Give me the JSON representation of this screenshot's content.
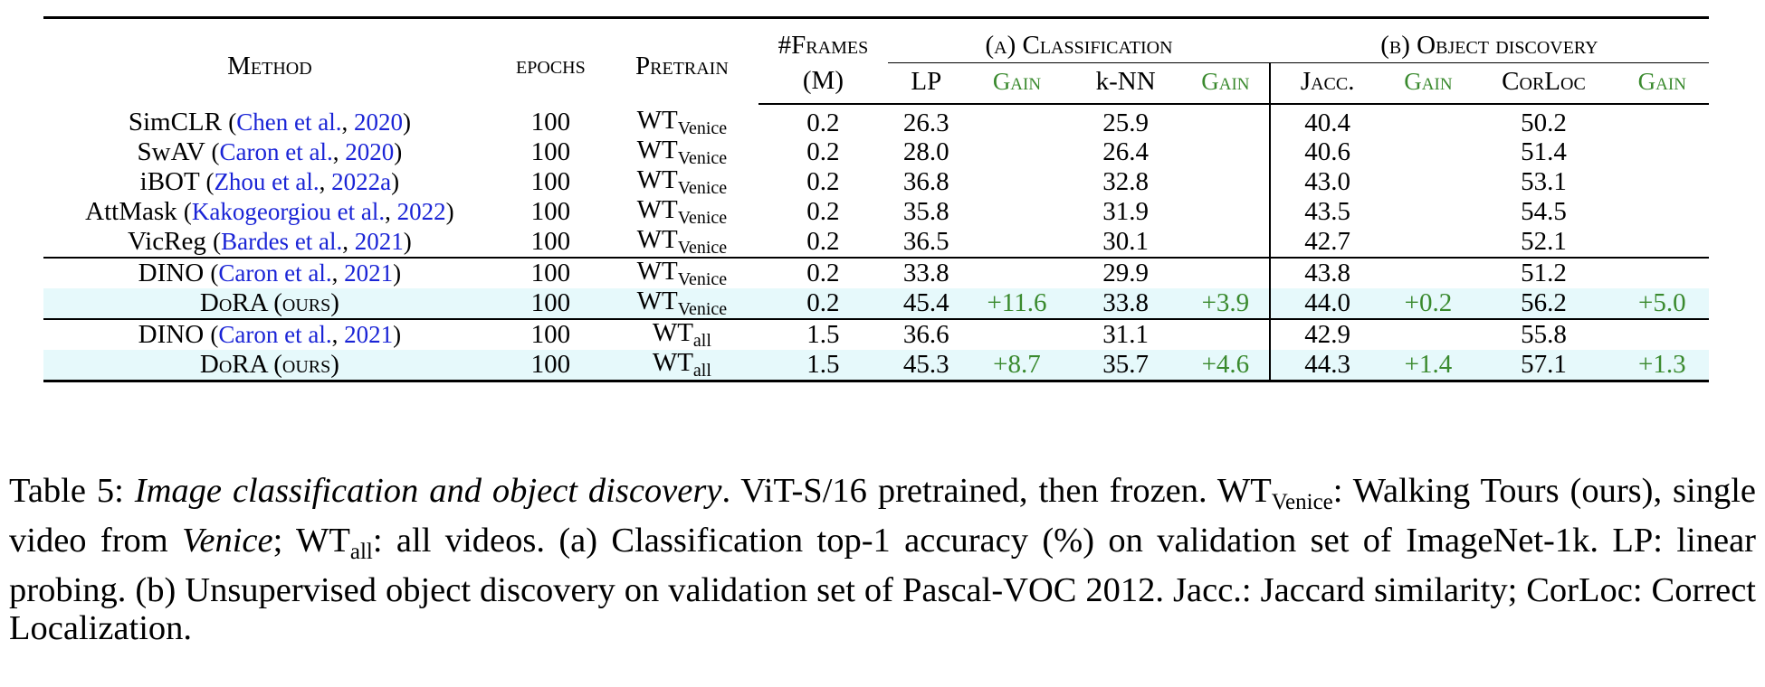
{
  "table": {
    "headers": {
      "method": "Method",
      "epochs": "epochs",
      "pretrain": "Pretrain",
      "frames_line1": "#Frames",
      "frames_line2": "(M)",
      "group_a": "(a) Classification",
      "group_b": "(b) Object discovery",
      "lp": "LP",
      "gain": "Gain",
      "knn": "k-NN",
      "jacc": "Jacc.",
      "corloc": "CorLoc"
    },
    "rows": [
      {
        "method": "SimCLR",
        "open": "(",
        "cite_author": "Chen et al.",
        "sep": ", ",
        "cite_year": "2020",
        "close": ")",
        "epochs": "100",
        "pretrain": "WT",
        "pretrain_sub": "Venice",
        "frames": "0.2",
        "lp": "26.3",
        "lp_gain": "",
        "knn": "25.9",
        "knn_gain": "",
        "jacc": "40.4",
        "jacc_gain": "",
        "corloc": "50.2",
        "corloc_gain": ""
      },
      {
        "method": "SwAV",
        "open": "(",
        "cite_author": "Caron et al.",
        "sep": ", ",
        "cite_year": "2020",
        "close": ")",
        "epochs": "100",
        "pretrain": "WT",
        "pretrain_sub": "Venice",
        "frames": "0.2",
        "lp": "28.0",
        "lp_gain": "",
        "knn": "26.4",
        "knn_gain": "",
        "jacc": "40.6",
        "jacc_gain": "",
        "corloc": "51.4",
        "corloc_gain": ""
      },
      {
        "method": "iBOT",
        "open": "(",
        "cite_author": "Zhou et al.",
        "sep": ", ",
        "cite_year": "2022a",
        "close": ")",
        "epochs": "100",
        "pretrain": "WT",
        "pretrain_sub": "Venice",
        "frames": "0.2",
        "lp": "36.8",
        "lp_gain": "",
        "knn": "32.8",
        "knn_gain": "",
        "jacc": "43.0",
        "jacc_gain": "",
        "corloc": "53.1",
        "corloc_gain": ""
      },
      {
        "method": "AttMask",
        "open": "(",
        "cite_author": "Kakogeorgiou et al.",
        "sep": ", ",
        "cite_year": "2022",
        "close": ")",
        "epochs": "100",
        "pretrain": "WT",
        "pretrain_sub": "Venice",
        "frames": "0.2",
        "lp": "35.8",
        "lp_gain": "",
        "knn": "31.9",
        "knn_gain": "",
        "jacc": "43.5",
        "jacc_gain": "",
        "corloc": "54.5",
        "corloc_gain": ""
      },
      {
        "method": "VicReg",
        "open": "(",
        "cite_author": "Bardes et al.",
        "sep": ", ",
        "cite_year": "2021",
        "close": ")",
        "epochs": "100",
        "pretrain": "WT",
        "pretrain_sub": "Venice",
        "frames": "0.2",
        "lp": "36.5",
        "lp_gain": "",
        "knn": "30.1",
        "knn_gain": "",
        "jacc": "42.7",
        "jacc_gain": "",
        "corloc": "52.1",
        "corloc_gain": ""
      },
      {
        "method": "DINO",
        "open": "(",
        "cite_author": "Caron et al.",
        "sep": ", ",
        "cite_year": "2021",
        "close": ")",
        "epochs": "100",
        "pretrain": "WT",
        "pretrain_sub": "Venice",
        "frames": "0.2",
        "lp": "33.8",
        "lp_gain": "",
        "knn": "29.9",
        "knn_gain": "",
        "jacc": "43.8",
        "jacc_gain": "",
        "corloc": "51.2",
        "corloc_gain": ""
      },
      {
        "method": "DoRA (ours)",
        "open": "",
        "cite_author": "",
        "sep": "",
        "cite_year": "",
        "close": "",
        "epochs": "100",
        "pretrain": "WT",
        "pretrain_sub": "Venice",
        "frames": "0.2",
        "lp": "45.4",
        "lp_gain": "+11.6",
        "knn": "33.8",
        "knn_gain": "+3.9",
        "jacc": "44.0",
        "jacc_gain": "+0.2",
        "corloc": "56.2",
        "corloc_gain": "+5.0"
      },
      {
        "method": "DINO",
        "open": "(",
        "cite_author": "Caron et al.",
        "sep": ", ",
        "cite_year": "2021",
        "close": ")",
        "epochs": "100",
        "pretrain": "WT",
        "pretrain_sub": "all",
        "frames": "1.5",
        "lp": "36.6",
        "lp_gain": "",
        "knn": "31.1",
        "knn_gain": "",
        "jacc": "42.9",
        "jacc_gain": "",
        "corloc": "55.8",
        "corloc_gain": ""
      },
      {
        "method": "DoRA (ours)",
        "open": "",
        "cite_author": "",
        "sep": "",
        "cite_year": "",
        "close": "",
        "epochs": "100",
        "pretrain": "WT",
        "pretrain_sub": "all",
        "frames": "1.5",
        "lp": "45.3",
        "lp_gain": "+8.7",
        "knn": "35.7",
        "knn_gain": "+4.6",
        "jacc": "44.3",
        "jacc_gain": "+1.4",
        "corloc": "57.1",
        "corloc_gain": "+1.3"
      }
    ]
  },
  "caption": {
    "label": "Table 5:",
    "title": "Image classification and object discovery",
    "t1": ".  ViT-S/16 pretrained, then frozen.  WT",
    "sub_venice": "Venice",
    "t2": ": Walking Tours (ours), single video from ",
    "venice": "Venice",
    "t3": "; WT",
    "sub_all": "all",
    "t4": ": all videos. (a) Classification top-1 accuracy (%) on validation set of ImageNet-1k.  LP: linear probing.  (b) Unsupervised object discovery on validation set of Pascal-VOC 2012. Jacc.: Jaccard similarity; CorLoc: Correct Localization."
  },
  "colors": {
    "gain": "#3a8a2e",
    "citation": "#1a24d6",
    "highlight": "#e6f9fb"
  }
}
